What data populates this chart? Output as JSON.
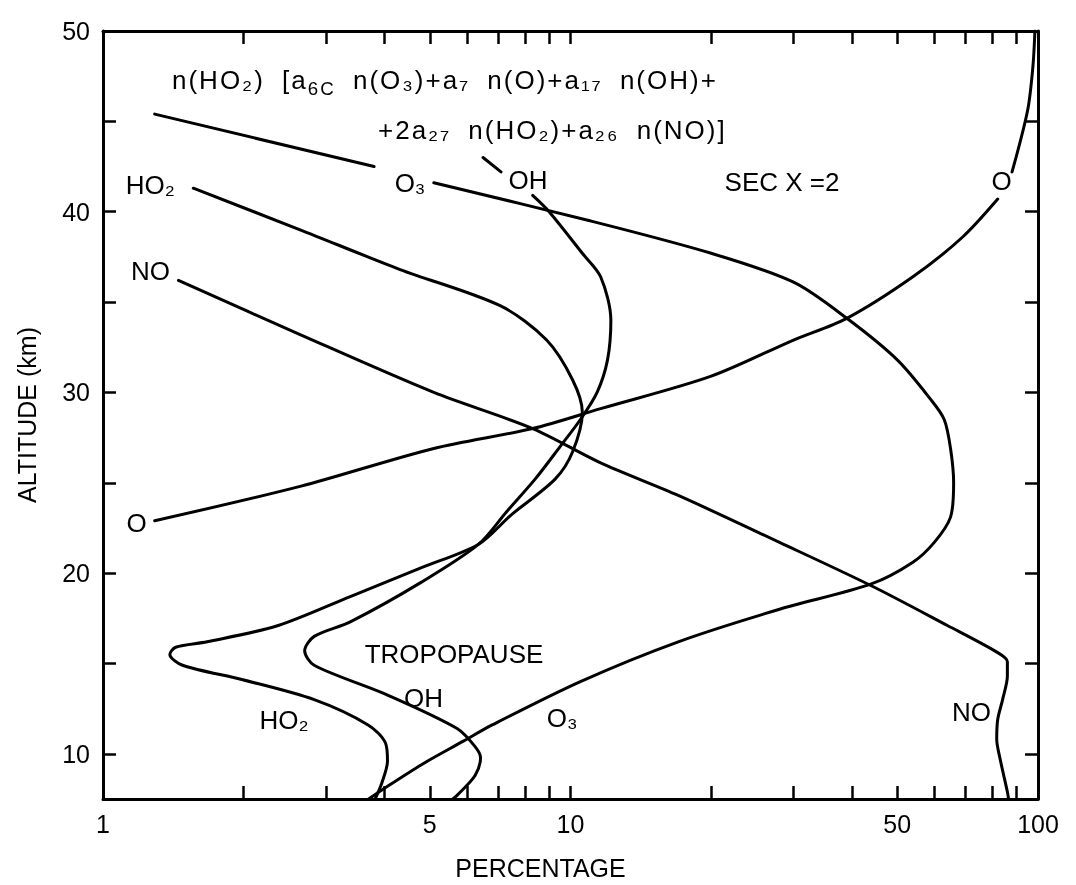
{
  "chart_data": {
    "type": "line",
    "xlabel": "PERCENTAGE",
    "ylabel": "ALTITUDE (km)",
    "log": "x",
    "line_style": "solid",
    "xlim": [
      1,
      100
    ],
    "xticks": [
      1,
      {
        "value": 2,
        "label": null
      },
      {
        "value": 3,
        "label": null
      },
      {
        "value": 4,
        "label": null
      },
      5,
      {
        "value": 6,
        "label": null
      },
      {
        "value": 7,
        "label": null
      },
      {
        "value": 8,
        "label": null
      },
      {
        "value": 9,
        "label": null
      },
      10,
      {
        "value": 20,
        "label": null
      },
      {
        "value": 30,
        "label": null
      },
      {
        "value": 40,
        "label": null
      },
      50,
      {
        "value": 60,
        "label": null
      },
      {
        "value": 70,
        "label": null
      },
      {
        "value": 80,
        "label": null
      },
      {
        "value": 90,
        "label": null
      },
      100
    ],
    "ylim": [
      7.5,
      50
    ],
    "yticks": [
      10,
      {
        "value": 15,
        "label": null
      },
      20,
      {
        "value": 25,
        "label": null
      },
      30,
      {
        "value": 35,
        "label": null
      },
      40,
      {
        "value": 45,
        "label": null
      },
      50
    ],
    "series": [
      {
        "name": "HO₂",
        "color": "#000000",
        "x": [
          1.56,
          2.64,
          4.32,
          7.07,
          8.89,
          10.1,
          10.6,
          10.1,
          9.27,
          7.45,
          6.36,
          4.8,
          3.38,
          2.37,
          1.67,
          1.43,
          1.39,
          1.48,
          1.99,
          2.83,
          3.69,
          4.02,
          4.06,
          3.95,
          3.82
        ],
        "values": [
          41.3,
          39.0,
          36.8,
          34.8,
          32.9,
          30.7,
          28.9,
          26.7,
          25.2,
          23.2,
          21.6,
          20.3,
          18.7,
          17.1,
          16.2,
          15.9,
          15.5,
          14.9,
          14.1,
          13.0,
          11.6,
          10.6,
          9.6,
          8.4,
          7.5
        ]
      },
      {
        "name": "OH",
        "color": "#000000",
        "x": [
          6.5,
          7.1,
          null,
          8.3,
          9.0,
          10.6,
          11.6,
          12.2,
          12.0,
          11.4,
          10.5,
          9.5,
          8.4,
          7.3,
          6.36,
          4.8,
          3.38,
          2.83,
          2.7,
          2.83,
          4.02,
          5.72,
          6.25,
          6.42,
          6.25,
          5.72,
          5.6
        ],
        "values": [
          43.0,
          42.2,
          null,
          40.9,
          40.0,
          37.7,
          36.4,
          34.0,
          31.8,
          30.0,
          28.5,
          27.0,
          25.2,
          23.4,
          21.6,
          19.5,
          17.3,
          16.5,
          15.7,
          14.9,
          13.3,
          11.4,
          10.4,
          9.8,
          8.8,
          7.7,
          7.5
        ]
      },
      {
        "name": "O₃",
        "color": "#000000",
        "x": [
          1.29,
          3.8,
          null,
          5.1,
          11.0,
          20,
          30,
          39,
          50,
          59,
          63,
          65,
          66,
          65,
          60,
          54,
          44,
          28,
          17,
          10.5,
          6.8,
          5.9,
          4.8,
          3.95,
          3.7
        ],
        "values": [
          45.4,
          42.5,
          null,
          41.6,
          39.5,
          37.7,
          36.1,
          34.1,
          31.8,
          29.6,
          28.5,
          26.9,
          25.0,
          23.1,
          21.7,
          20.6,
          19.4,
          18.0,
          16.2,
          14.0,
          11.6,
          10.7,
          9.4,
          8.0,
          7.5
        ]
      },
      {
        "name": "NO",
        "color": "#000000",
        "x": [
          1.45,
          2.64,
          5.1,
          8.3,
          11.6,
          17,
          28,
          44,
          64,
          82,
          86,
          86,
          84,
          82,
          81.6,
          83,
          86,
          86.5
        ],
        "values": [
          36.2,
          33.2,
          30.0,
          28.0,
          26.1,
          24.3,
          21.7,
          19.3,
          17.1,
          15.6,
          15.1,
          14.3,
          13.0,
          11.9,
          10.8,
          9.7,
          7.9,
          7.5
        ]
      },
      {
        "name": "O",
        "color": "#000000",
        "x": [
          1.29,
          2.64,
          5.1,
          8.3,
          11.6,
          20,
          30,
          39,
          54,
          69,
          82,
          null,
          88,
          95,
          97.5,
          98.5
        ],
        "values": [
          22.9,
          24.8,
          26.9,
          28.0,
          29.1,
          30.9,
          32.9,
          34.1,
          36.4,
          38.6,
          40.7,
          null,
          42.2,
          45.6,
          48.0,
          50.0
        ]
      }
    ],
    "annotations": [
      "n(HO₂) [a$_{6C}$ n(O₃)+a₇ n(O)+a₁₇ n(OH)+\n+2a₂₇ n(HO₂)+a₂₆ n(NO)]",
      "SEC X =2",
      "TROPOPAUSE"
    ]
  }
}
